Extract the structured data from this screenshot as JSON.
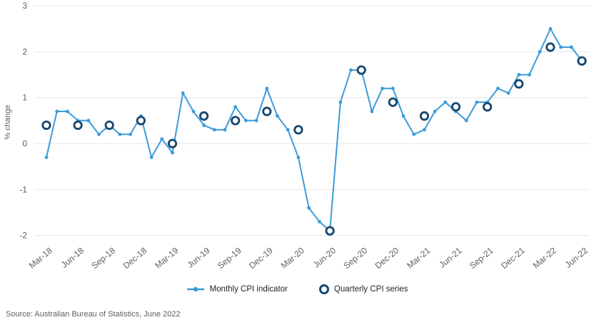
{
  "source_text": "Source: Australian Bureau of Statistics, June 2022",
  "colors": {
    "monthly_line": "#3b9cd9",
    "quarterly_ring": "#17466e",
    "gridline": "#e6e6e6",
    "axis_text": "#605e5c",
    "legend_text": "#252423",
    "background": "#ffffff"
  },
  "chart_data": {
    "type": "line",
    "title": "",
    "xlabel": "",
    "ylabel": "% change",
    "ylim": [
      -2,
      3
    ],
    "yticks": [
      3,
      2,
      1,
      0,
      -1,
      -2
    ],
    "grid": "horizontal",
    "legend_position": "bottom",
    "x_tick_labels": [
      "Mar-18",
      "Jun-18",
      "Sep-18",
      "Dec-18",
      "Mar-19",
      "Jun-19",
      "Sep-19",
      "Dec-19",
      "Mar-20",
      "Jun-20",
      "Sep-20",
      "Dec-20",
      "Mar-21",
      "Jun-21",
      "Sep-21",
      "Dec-21",
      "Mar-22",
      "Jun-22"
    ],
    "months": [
      "Mar-18",
      "Apr-18",
      "May-18",
      "Jun-18",
      "Jul-18",
      "Aug-18",
      "Sep-18",
      "Oct-18",
      "Nov-18",
      "Dec-18",
      "Jan-19",
      "Feb-19",
      "Mar-19",
      "Apr-19",
      "May-19",
      "Jun-19",
      "Jul-19",
      "Aug-19",
      "Sep-19",
      "Oct-19",
      "Nov-19",
      "Dec-19",
      "Jan-20",
      "Feb-20",
      "Mar-20",
      "Apr-20",
      "May-20",
      "Jun-20",
      "Jul-20",
      "Aug-20",
      "Sep-20",
      "Oct-20",
      "Nov-20",
      "Dec-20",
      "Jan-21",
      "Feb-21",
      "Mar-21",
      "Apr-21",
      "May-21",
      "Jun-21",
      "Jul-21",
      "Aug-21",
      "Sep-21",
      "Oct-21",
      "Nov-21",
      "Dec-21",
      "Jan-22",
      "Feb-22",
      "Mar-22",
      "Apr-22",
      "May-22",
      "Jun-22"
    ],
    "series": [
      {
        "name": "Monthly CPI indicator",
        "type": "line-with-markers",
        "color": "#3b9cd9",
        "values": [
          -0.3,
          0.7,
          0.7,
          0.5,
          0.5,
          0.2,
          0.4,
          0.2,
          0.2,
          0.6,
          -0.3,
          0.1,
          -0.2,
          1.1,
          0.7,
          0.4,
          0.3,
          0.3,
          0.8,
          0.5,
          0.5,
          1.2,
          0.6,
          0.3,
          -0.3,
          -1.4,
          -1.7,
          -1.9,
          0.9,
          1.6,
          1.6,
          0.7,
          1.2,
          1.2,
          0.6,
          0.2,
          0.3,
          0.7,
          0.9,
          0.7,
          0.5,
          0.9,
          0.9,
          1.2,
          1.1,
          1.5,
          1.5,
          2.0,
          2.5,
          2.1,
          2.1,
          1.8
        ]
      },
      {
        "name": "Quarterly CPI series",
        "type": "open-circle-markers",
        "color": "#17466e",
        "x": [
          "Mar-18",
          "Jun-18",
          "Sep-18",
          "Dec-18",
          "Mar-19",
          "Jun-19",
          "Sep-19",
          "Dec-19",
          "Mar-20",
          "Jun-20",
          "Sep-20",
          "Dec-20",
          "Mar-21",
          "Jun-21",
          "Sep-21",
          "Dec-21",
          "Mar-22",
          "Jun-22"
        ],
        "values": [
          0.4,
          0.4,
          0.4,
          0.5,
          0.0,
          0.6,
          0.5,
          0.7,
          0.3,
          -1.9,
          1.6,
          0.9,
          0.6,
          0.8,
          0.8,
          1.3,
          2.1,
          1.8
        ]
      }
    ]
  }
}
